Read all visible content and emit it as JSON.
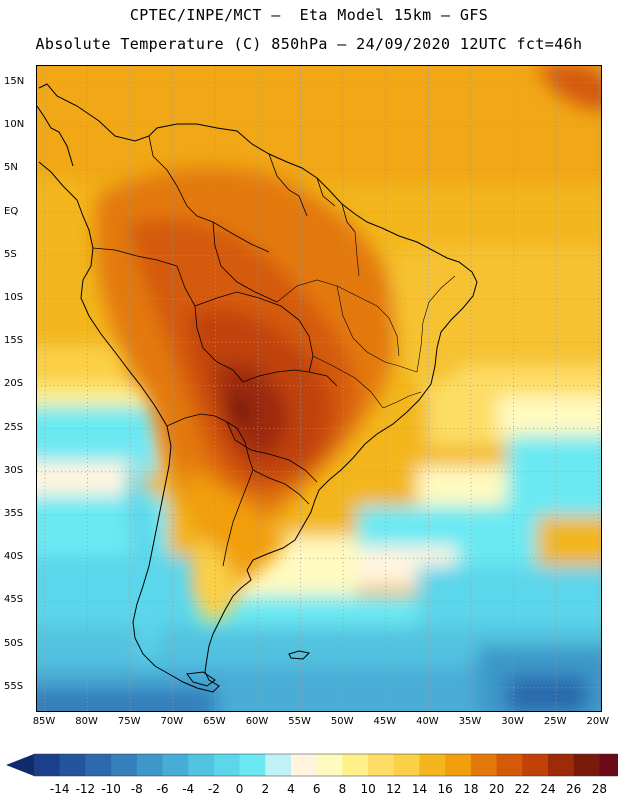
{
  "title": {
    "line1": "CPTEC/INPE/MCT –  Eta Model 15km – GFS",
    "line2": "Absolute Temperature (C) 850hPa – 24/09/2020 12UTC fct=46h"
  },
  "map": {
    "lat_labels": [
      "15N",
      "10N",
      "5N",
      "EQ",
      "5S",
      "10S",
      "15S",
      "20S",
      "25S",
      "30S",
      "35S",
      "40S",
      "45S",
      "50S",
      "55S"
    ],
    "lon_labels": [
      "85W",
      "80W",
      "75W",
      "70W",
      "65W",
      "60W",
      "55W",
      "50W",
      "45W",
      "40W",
      "35W",
      "30W",
      "25W",
      "20W"
    ]
  },
  "legend": {
    "labels": [
      "-14",
      "-12",
      "-10",
      "-8",
      "-6",
      "-4",
      "-2",
      "0",
      "2",
      "4",
      "6",
      "8",
      "10",
      "12",
      "14",
      "16",
      "18",
      "20",
      "22",
      "24",
      "26",
      "28"
    ],
    "colors": [
      "#1c3f8c",
      "#23559e",
      "#2c6aad",
      "#3580bd",
      "#3e97c9",
      "#48add6",
      "#52c3e0",
      "#5cd6ea",
      "#6ae9f3",
      "#bff1f7",
      "#fff5df",
      "#fffac0",
      "#fff08a",
      "#fddd65",
      "#fad046",
      "#f3b61f",
      "#f19f0e",
      "#e3790a",
      "#d45a08",
      "#c04208",
      "#9d2a08",
      "#7a1a0a",
      "#6a0a18"
    ],
    "arrow_left_color": "#102a6c",
    "arrow_right_color": "#6a0a18"
  },
  "colors": {
    "land_outline": "#000000",
    "grid": "#9a9a9a",
    "frame": "#000000"
  }
}
